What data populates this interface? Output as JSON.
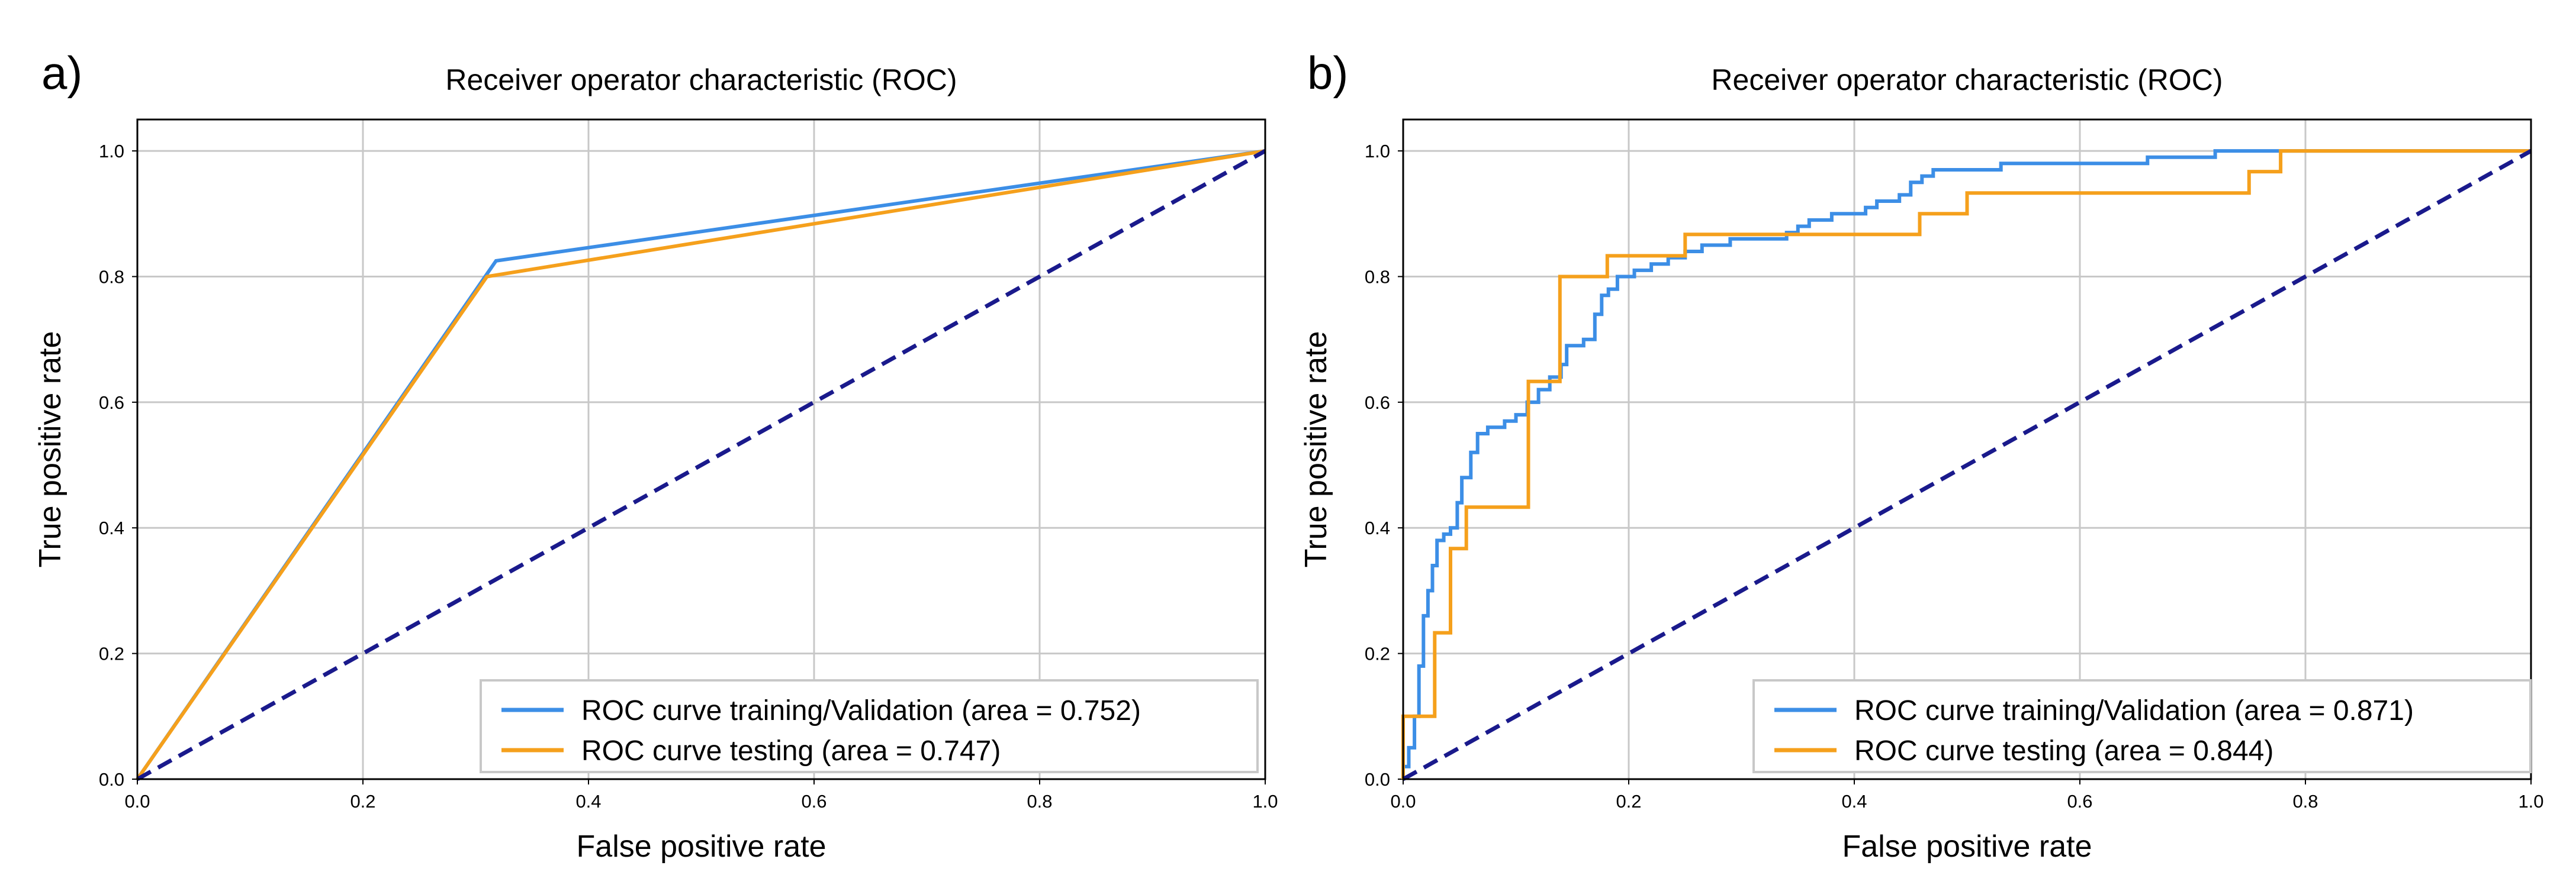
{
  "chart_data": [
    {
      "panel_label": "a)",
      "type": "line",
      "title": "Receiver operator characteristic (ROC)",
      "xlabel": "False positive rate",
      "ylabel": "True positive rate",
      "xlim": [
        0,
        1
      ],
      "ylim": [
        0,
        1.05
      ],
      "xticks": [
        "0.0",
        "0.2",
        "0.4",
        "0.6",
        "0.8",
        "1.0"
      ],
      "yticks": [
        "0.0",
        "0.2",
        "0.4",
        "0.6",
        "0.8",
        "1.0"
      ],
      "grid": true,
      "legend_position": "bottom-right",
      "series": [
        {
          "name": "ROC curve training/Validation  (area = 0.752)",
          "color": "#3c8ee6",
          "style": "solid",
          "points": [
            [
              0,
              0
            ],
            [
              0.318,
              0.825
            ],
            [
              1,
              1
            ]
          ]
        },
        {
          "name": "ROC curve testing (area = 0.747)",
          "color": "#f5a01c",
          "style": "solid",
          "points": [
            [
              0,
              0
            ],
            [
              0.31,
              0.8
            ],
            [
              1,
              1
            ]
          ]
        },
        {
          "name": "",
          "color": "#1a1a8c",
          "style": "dashed",
          "points": [
            [
              0,
              0
            ],
            [
              1,
              1
            ]
          ]
        }
      ]
    },
    {
      "panel_label": "b)",
      "type": "line",
      "title": "Receiver operator characteristic (ROC)",
      "xlabel": "False positive rate",
      "ylabel": "True positive rate",
      "xlim": [
        0,
        1
      ],
      "ylim": [
        0,
        1.05
      ],
      "xticks": [
        "0.0",
        "0.2",
        "0.4",
        "0.6",
        "0.8",
        "1.0"
      ],
      "yticks": [
        "0.0",
        "0.2",
        "0.4",
        "0.6",
        "0.8",
        "1.0"
      ],
      "grid": true,
      "legend_position": "bottom-right",
      "series": [
        {
          "name": "ROC curve training/Validation  (area = 0.871)",
          "color": "#3c8ee6",
          "style": "step",
          "points": [
            [
              0,
              0
            ],
            [
              0,
              0.02
            ],
            [
              0.005,
              0.02
            ],
            [
              0.005,
              0.05
            ],
            [
              0.01,
              0.05
            ],
            [
              0.01,
              0.1
            ],
            [
              0.014,
              0.1
            ],
            [
              0.014,
              0.18
            ],
            [
              0.018,
              0.18
            ],
            [
              0.018,
              0.26
            ],
            [
              0.022,
              0.26
            ],
            [
              0.022,
              0.3
            ],
            [
              0.026,
              0.3
            ],
            [
              0.026,
              0.34
            ],
            [
              0.03,
              0.34
            ],
            [
              0.03,
              0.38
            ],
            [
              0.036,
              0.38
            ],
            [
              0.036,
              0.39
            ],
            [
              0.042,
              0.39
            ],
            [
              0.042,
              0.4
            ],
            [
              0.048,
              0.4
            ],
            [
              0.048,
              0.44
            ],
            [
              0.052,
              0.44
            ],
            [
              0.052,
              0.48
            ],
            [
              0.06,
              0.48
            ],
            [
              0.06,
              0.52
            ],
            [
              0.066,
              0.52
            ],
            [
              0.066,
              0.55
            ],
            [
              0.075,
              0.55
            ],
            [
              0.075,
              0.56
            ],
            [
              0.09,
              0.56
            ],
            [
              0.09,
              0.57
            ],
            [
              0.1,
              0.57
            ],
            [
              0.1,
              0.58
            ],
            [
              0.11,
              0.58
            ],
            [
              0.11,
              0.6
            ],
            [
              0.12,
              0.6
            ],
            [
              0.12,
              0.62
            ],
            [
              0.13,
              0.62
            ],
            [
              0.13,
              0.64
            ],
            [
              0.14,
              0.64
            ],
            [
              0.14,
              0.66
            ],
            [
              0.145,
              0.66
            ],
            [
              0.145,
              0.69
            ],
            [
              0.16,
              0.69
            ],
            [
              0.16,
              0.7
            ],
            [
              0.17,
              0.7
            ],
            [
              0.17,
              0.74
            ],
            [
              0.176,
              0.74
            ],
            [
              0.176,
              0.77
            ],
            [
              0.182,
              0.77
            ],
            [
              0.182,
              0.78
            ],
            [
              0.19,
              0.78
            ],
            [
              0.19,
              0.8
            ],
            [
              0.205,
              0.8
            ],
            [
              0.205,
              0.81
            ],
            [
              0.22,
              0.81
            ],
            [
              0.22,
              0.82
            ],
            [
              0.235,
              0.82
            ],
            [
              0.235,
              0.83
            ],
            [
              0.25,
              0.83
            ],
            [
              0.25,
              0.84
            ],
            [
              0.265,
              0.84
            ],
            [
              0.265,
              0.85
            ],
            [
              0.29,
              0.85
            ],
            [
              0.29,
              0.86
            ],
            [
              0.34,
              0.86
            ],
            [
              0.34,
              0.87
            ],
            [
              0.35,
              0.87
            ],
            [
              0.35,
              0.88
            ],
            [
              0.36,
              0.88
            ],
            [
              0.36,
              0.89
            ],
            [
              0.38,
              0.89
            ],
            [
              0.38,
              0.9
            ],
            [
              0.41,
              0.9
            ],
            [
              0.41,
              0.91
            ],
            [
              0.42,
              0.91
            ],
            [
              0.42,
              0.92
            ],
            [
              0.44,
              0.92
            ],
            [
              0.44,
              0.93
            ],
            [
              0.45,
              0.93
            ],
            [
              0.45,
              0.95
            ],
            [
              0.46,
              0.95
            ],
            [
              0.46,
              0.96
            ],
            [
              0.47,
              0.96
            ],
            [
              0.47,
              0.97
            ],
            [
              0.53,
              0.97
            ],
            [
              0.53,
              0.98
            ],
            [
              0.66,
              0.98
            ],
            [
              0.66,
              0.99
            ],
            [
              0.72,
              0.99
            ],
            [
              0.72,
              1.0
            ],
            [
              0.77,
              1.0
            ],
            [
              1,
              1.0
            ]
          ]
        },
        {
          "name": "ROC curve testing (area = 0.844)",
          "color": "#f5a01c",
          "style": "step",
          "points": [
            [
              0,
              0
            ],
            [
              0,
              0.1
            ],
            [
              0.028,
              0.1
            ],
            [
              0.028,
              0.233
            ],
            [
              0.042,
              0.233
            ],
            [
              0.042,
              0.367
            ],
            [
              0.056,
              0.367
            ],
            [
              0.056,
              0.433
            ],
            [
              0.111,
              0.433
            ],
            [
              0.111,
              0.633
            ],
            [
              0.139,
              0.633
            ],
            [
              0.139,
              0.8
            ],
            [
              0.181,
              0.8
            ],
            [
              0.181,
              0.833
            ],
            [
              0.25,
              0.833
            ],
            [
              0.25,
              0.867
            ],
            [
              0.458,
              0.867
            ],
            [
              0.458,
              0.9
            ],
            [
              0.5,
              0.9
            ],
            [
              0.5,
              0.933
            ],
            [
              0.75,
              0.933
            ],
            [
              0.75,
              0.967
            ],
            [
              0.778,
              0.967
            ],
            [
              0.778,
              1.0
            ],
            [
              1,
              1.0
            ]
          ]
        },
        {
          "name": "",
          "color": "#1a1a8c",
          "style": "dashed",
          "points": [
            [
              0,
              0
            ],
            [
              1,
              1
            ]
          ]
        }
      ]
    }
  ]
}
